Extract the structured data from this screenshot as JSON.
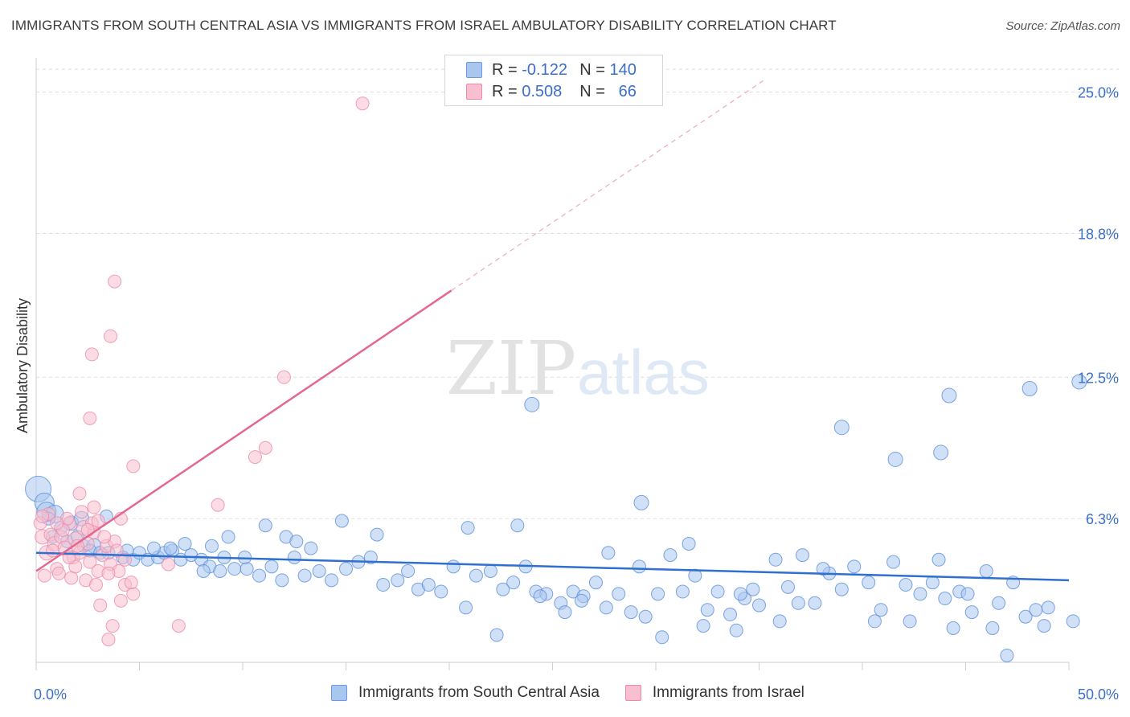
{
  "header": {
    "title": "IMMIGRANTS FROM SOUTH CENTRAL ASIA VS IMMIGRANTS FROM ISRAEL AMBULATORY DISABILITY CORRELATION CHART",
    "source": "Source: ZipAtlas.com"
  },
  "watermark": {
    "zip": "ZIP",
    "atlas": "atlas"
  },
  "legend_top": [
    {
      "r_label": "R =",
      "r_value": "-0.122",
      "n_label": "N =",
      "n_value": "140",
      "color": "#a9c6ef",
      "border": "#6a9ae0"
    },
    {
      "r_label": "R =",
      "r_value": "0.508",
      "n_label": "N =",
      "n_value": "66",
      "color": "#f8bfd0",
      "border": "#ec8aa8"
    }
  ],
  "chart_data": {
    "type": "scatter",
    "title": "IMMIGRANTS FROM SOUTH CENTRAL ASIA VS IMMIGRANTS FROM ISRAEL AMBULATORY DISABILITY CORRELATION CHART",
    "xlabel": "",
    "ylabel": "Ambulatory Disability",
    "xlim": [
      0,
      50
    ],
    "ylim": [
      0,
      26.5
    ],
    "x_tick_labels": [
      "0.0%",
      "50.0%"
    ],
    "y_ticks": [
      6.3,
      12.5,
      18.8,
      25.0
    ],
    "y_tick_labels": [
      "6.3%",
      "12.5%",
      "18.8%",
      "25.0%"
    ],
    "grid": "horizontal-dashed",
    "legend_placement": "bottom",
    "series": [
      {
        "name": "Immigrants from South Central Asia",
        "color": "#5b8fdb",
        "fill": "#a9c6ef",
        "trend": {
          "x": [
            0,
            50
          ],
          "y": [
            4.8,
            3.6
          ],
          "color": "#2f6fd0"
        },
        "points": [
          [
            0.1,
            7.6,
            16
          ],
          [
            0.4,
            7.0,
            12
          ],
          [
            0.5,
            6.6,
            12
          ],
          [
            0.9,
            6.5,
            11
          ],
          [
            0.6,
            6.3,
            8
          ],
          [
            1.2,
            5.9,
            8
          ],
          [
            1.7,
            6.1,
            9
          ],
          [
            2.2,
            6.3,
            9
          ],
          [
            0.8,
            5.5,
            8
          ],
          [
            1.5,
            5.3,
            8
          ],
          [
            2.0,
            5.5,
            8
          ],
          [
            2.3,
            5.1,
            8
          ],
          [
            2.8,
            5.1,
            9
          ],
          [
            2.6,
            4.9,
            8
          ],
          [
            3.1,
            4.8,
            8
          ],
          [
            3.5,
            4.8,
            8
          ],
          [
            4.2,
            4.6,
            8
          ],
          [
            4.7,
            4.5,
            8
          ],
          [
            5.0,
            4.8,
            8
          ],
          [
            5.4,
            4.5,
            8
          ],
          [
            5.9,
            4.6,
            8
          ],
          [
            6.2,
            4.8,
            8
          ],
          [
            6.6,
            4.9,
            8
          ],
          [
            7.0,
            4.5,
            8
          ],
          [
            7.5,
            4.7,
            8
          ],
          [
            7.2,
            5.2,
            8
          ],
          [
            8.0,
            4.5,
            8
          ],
          [
            8.4,
            4.2,
            8
          ],
          [
            8.9,
            4.0,
            8
          ],
          [
            8.1,
            4.0,
            8
          ],
          [
            9.1,
            4.6,
            8
          ],
          [
            9.6,
            4.1,
            8
          ],
          [
            10.2,
            4.1,
            8
          ],
          [
            10.8,
            3.8,
            8
          ],
          [
            11.4,
            4.2,
            8
          ],
          [
            11.9,
            3.6,
            8
          ],
          [
            12.5,
            4.6,
            8
          ],
          [
            13.0,
            3.8,
            8
          ],
          [
            13.7,
            4.0,
            8
          ],
          [
            14.3,
            3.6,
            8
          ],
          [
            15.0,
            4.1,
            8
          ],
          [
            15.6,
            4.4,
            8
          ],
          [
            16.2,
            4.6,
            8
          ],
          [
            16.8,
            3.4,
            8
          ],
          [
            17.5,
            3.6,
            8
          ],
          [
            18.0,
            4.0,
            8
          ],
          [
            18.5,
            3.2,
            8
          ],
          [
            19.0,
            3.4,
            8
          ],
          [
            19.6,
            3.1,
            8
          ],
          [
            20.2,
            4.2,
            8
          ],
          [
            20.8,
            2.4,
            8
          ],
          [
            21.3,
            3.8,
            8
          ],
          [
            22.0,
            4.0,
            8
          ],
          [
            22.6,
            3.2,
            8
          ],
          [
            23.1,
            3.5,
            8
          ],
          [
            23.7,
            4.2,
            8
          ],
          [
            24.2,
            3.1,
            8
          ],
          [
            24.7,
            3.0,
            8
          ],
          [
            25.4,
            2.6,
            8
          ],
          [
            26.0,
            3.1,
            8
          ],
          [
            26.5,
            2.9,
            8
          ],
          [
            27.1,
            3.5,
            8
          ],
          [
            27.6,
            2.4,
            8
          ],
          [
            28.2,
            3.0,
            8
          ],
          [
            28.8,
            2.2,
            8
          ],
          [
            29.5,
            2.0,
            8
          ],
          [
            30.1,
            3.0,
            8
          ],
          [
            30.7,
            4.7,
            8
          ],
          [
            31.3,
            3.1,
            8
          ],
          [
            31.9,
            3.8,
            8
          ],
          [
            32.5,
            2.3,
            8
          ],
          [
            33.0,
            3.1,
            8
          ],
          [
            33.6,
            2.1,
            8
          ],
          [
            34.3,
            2.8,
            8
          ],
          [
            35.0,
            2.5,
            8
          ],
          [
            34.7,
            3.2,
            8
          ],
          [
            35.8,
            4.5,
            8
          ],
          [
            36.4,
            3.3,
            8
          ],
          [
            37.1,
            4.7,
            8
          ],
          [
            37.7,
            2.6,
            8
          ],
          [
            38.4,
            3.9,
            8
          ],
          [
            39.0,
            3.2,
            8
          ],
          [
            39.6,
            4.2,
            8
          ],
          [
            40.3,
            3.5,
            8
          ],
          [
            40.9,
            2.3,
            8
          ],
          [
            41.5,
            4.4,
            8
          ],
          [
            42.1,
            3.4,
            8
          ],
          [
            42.8,
            3.0,
            8
          ],
          [
            43.4,
            3.5,
            8
          ],
          [
            44.0,
            2.8,
            8
          ],
          [
            44.7,
            3.1,
            8
          ],
          [
            45.3,
            2.2,
            8
          ],
          [
            46.0,
            4.0,
            8
          ],
          [
            46.6,
            2.6,
            8
          ],
          [
            47.3,
            3.5,
            8
          ],
          [
            47.9,
            2.0,
            8
          ],
          [
            48.4,
            2.3,
            8
          ],
          [
            49.0,
            2.4,
            8
          ],
          [
            43.7,
            4.5,
            8
          ],
          [
            45.1,
            3.0,
            8
          ],
          [
            38.1,
            4.1,
            8
          ],
          [
            36.9,
            2.6,
            8
          ],
          [
            11.1,
            6.0,
            8
          ],
          [
            14.8,
            6.2,
            8
          ],
          [
            16.5,
            5.6,
            8
          ],
          [
            20.9,
            5.9,
            8
          ],
          [
            23.3,
            6.0,
            8
          ],
          [
            27.7,
            4.8,
            8
          ],
          [
            29.2,
            4.2,
            8
          ],
          [
            31.6,
            5.2,
            8
          ],
          [
            25.6,
            2.2,
            8
          ],
          [
            24.4,
            2.9,
            8
          ],
          [
            26.4,
            2.7,
            8
          ],
          [
            33.9,
            1.4,
            8
          ],
          [
            32.3,
            1.6,
            8
          ],
          [
            36.0,
            1.8,
            8
          ],
          [
            40.6,
            1.8,
            8
          ],
          [
            42.3,
            1.8,
            8
          ],
          [
            44.4,
            1.5,
            8
          ],
          [
            46.3,
            1.5,
            8
          ],
          [
            48.8,
            1.6,
            8
          ],
          [
            50.2,
            1.8,
            8
          ],
          [
            22.3,
            1.2,
            8
          ],
          [
            30.3,
            1.1,
            8
          ],
          [
            34.1,
            3.0,
            8
          ],
          [
            47.0,
            0.3,
            8
          ],
          [
            8.5,
            5.1,
            8
          ],
          [
            9.3,
            5.5,
            8
          ],
          [
            12.1,
            5.5,
            8
          ],
          [
            13.3,
            5.0,
            8
          ],
          [
            10.1,
            4.6,
            8
          ],
          [
            12.6,
            5.3,
            8
          ],
          [
            6.5,
            5.0,
            8
          ],
          [
            3.4,
            6.4,
            8
          ],
          [
            4.4,
            4.9,
            8
          ],
          [
            5.7,
            5.0,
            8
          ],
          [
            24.0,
            11.3,
            9
          ],
          [
            29.3,
            7.0,
            9
          ],
          [
            39.0,
            10.3,
            9
          ],
          [
            44.2,
            11.7,
            9
          ],
          [
            41.6,
            8.9,
            9
          ],
          [
            48.1,
            12.0,
            9
          ],
          [
            50.5,
            12.3,
            9
          ],
          [
            43.8,
            9.2,
            9
          ]
        ]
      },
      {
        "name": "Immigrants from Israel",
        "color": "#ec8aa8",
        "fill": "#f8bfd0",
        "trend": {
          "x": [
            0,
            20.1
          ],
          "y": [
            4.0,
            16.3
          ],
          "color": "#e4678f",
          "dashed_to": [
            35.2,
            25.5
          ]
        },
        "points": [
          [
            0.2,
            6.1,
            8
          ],
          [
            0.3,
            5.5,
            9
          ],
          [
            0.5,
            4.8,
            9
          ],
          [
            0.7,
            5.6,
            8
          ],
          [
            0.9,
            5.2,
            9
          ],
          [
            1.0,
            4.1,
            8
          ],
          [
            1.2,
            5.5,
            8
          ],
          [
            1.4,
            5.0,
            9
          ],
          [
            1.6,
            6.1,
            8
          ],
          [
            1.8,
            4.6,
            8
          ],
          [
            1.9,
            5.4,
            9
          ],
          [
            2.1,
            4.8,
            8
          ],
          [
            2.3,
            5.9,
            9
          ],
          [
            2.5,
            5.2,
            8
          ],
          [
            2.6,
            4.4,
            8
          ],
          [
            2.8,
            5.7,
            8
          ],
          [
            3.0,
            4.0,
            8
          ],
          [
            3.2,
            4.7,
            8
          ],
          [
            3.4,
            5.1,
            8
          ],
          [
            3.6,
            4.3,
            8
          ],
          [
            3.8,
            5.3,
            8
          ],
          [
            4.0,
            4.0,
            8
          ],
          [
            0.4,
            3.8,
            8
          ],
          [
            1.1,
            3.9,
            8
          ],
          [
            1.7,
            3.7,
            8
          ],
          [
            2.4,
            3.6,
            8
          ],
          [
            3.5,
            3.9,
            8
          ],
          [
            4.3,
            3.4,
            8
          ],
          [
            4.7,
            3.0,
            8
          ],
          [
            2.9,
            3.4,
            8
          ],
          [
            3.1,
            2.5,
            8
          ],
          [
            3.7,
            1.6,
            8
          ],
          [
            4.6,
            3.5,
            8
          ],
          [
            6.4,
            4.3,
            8
          ],
          [
            6.9,
            1.6,
            8
          ],
          [
            0.6,
            6.5,
            8
          ],
          [
            1.5,
            6.3,
            8
          ],
          [
            2.2,
            6.6,
            8
          ],
          [
            2.7,
            6.1,
            8
          ],
          [
            4.1,
            6.3,
            8
          ],
          [
            3.3,
            5.5,
            8
          ],
          [
            4.3,
            4.5,
            8
          ],
          [
            2.1,
            7.4,
            8
          ],
          [
            8.8,
            6.9,
            8
          ],
          [
            4.7,
            8.6,
            8
          ],
          [
            10.6,
            9.0,
            8
          ],
          [
            11.1,
            9.4,
            8
          ],
          [
            2.6,
            10.7,
            8
          ],
          [
            12.0,
            12.5,
            8
          ],
          [
            2.7,
            13.5,
            8
          ],
          [
            3.6,
            14.3,
            8
          ],
          [
            3.8,
            16.7,
            8
          ],
          [
            15.8,
            24.5,
            8
          ],
          [
            1.3,
            5.8,
            8
          ],
          [
            0.8,
            4.9,
            8
          ],
          [
            1.9,
            4.2,
            8
          ],
          [
            2.8,
            6.8,
            8
          ],
          [
            3.5,
            1.0,
            8
          ],
          [
            4.1,
            2.7,
            8
          ],
          [
            2.0,
            5.1,
            8
          ],
          [
            1.6,
            4.6,
            8
          ],
          [
            3.9,
            4.9,
            8
          ],
          [
            0.3,
            6.4,
            8
          ],
          [
            1.0,
            6.1,
            8
          ],
          [
            2.5,
            5.8,
            8
          ],
          [
            3.0,
            6.2,
            8
          ]
        ]
      }
    ]
  }
}
